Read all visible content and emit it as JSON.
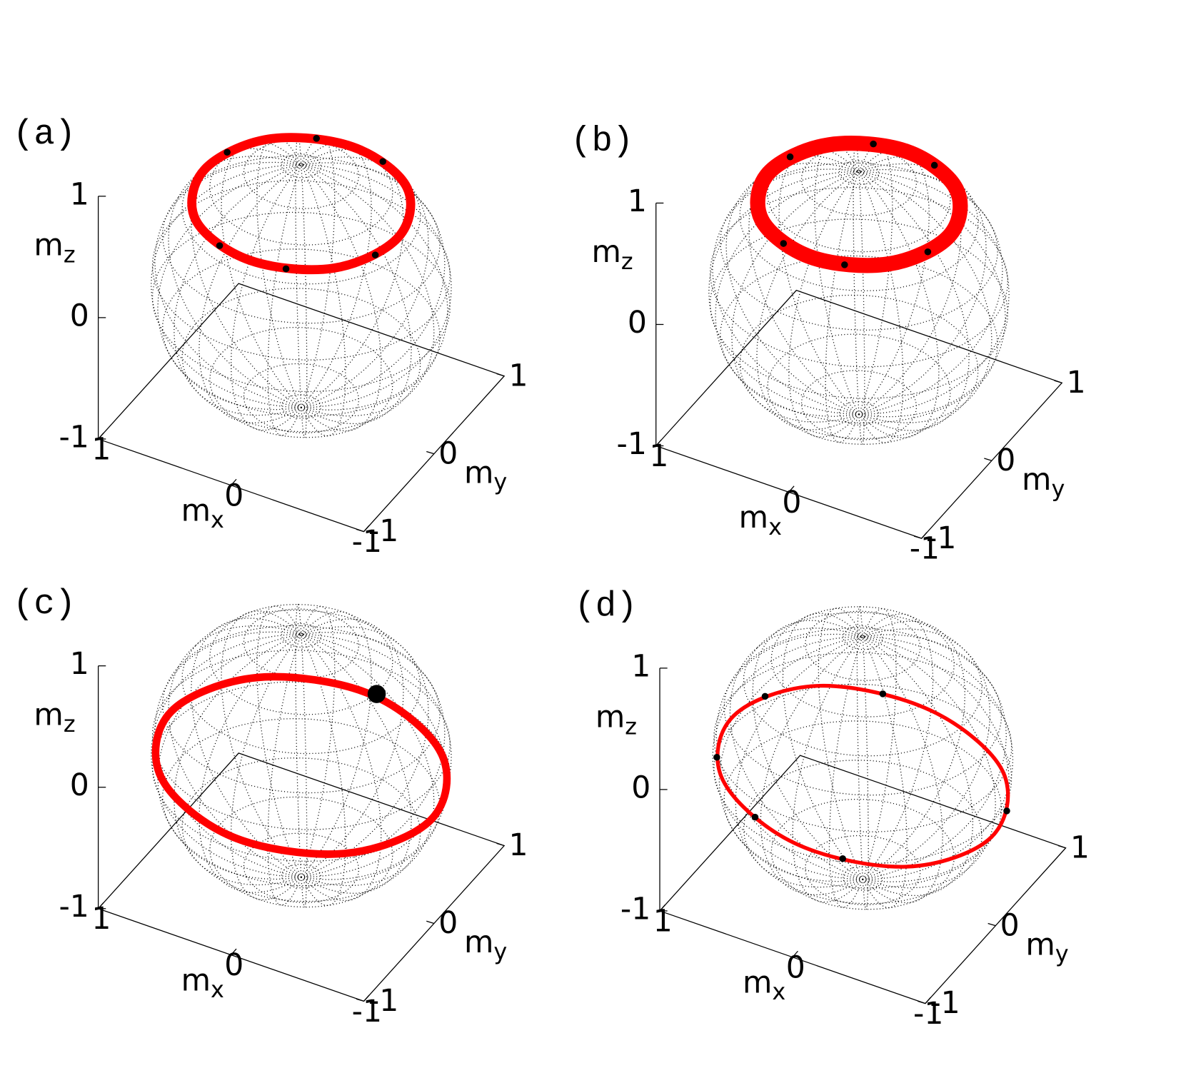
{
  "chart_data": [
    {
      "type": "sphere-trajectory",
      "panel_label": "(a)",
      "xlabel": {
        "text": "m",
        "subscript": "x"
      },
      "ylabel": {
        "text": "m",
        "subscript": "y"
      },
      "zlabel": {
        "text": "m",
        "subscript": "z"
      },
      "xlim": [
        -1,
        1
      ],
      "ylim": [
        -1,
        1
      ],
      "zlim": [
        -1,
        1
      ],
      "xticks": [
        -1,
        0,
        1
      ],
      "yticks": [
        -1,
        0,
        1
      ],
      "zticks": [
        -1,
        0,
        1
      ],
      "series": [
        {
          "mode": "line",
          "color": "#ff0000",
          "x": [
            0.73,
            0.52,
            0,
            -0.52,
            -0.73,
            -0.52,
            0,
            0.52
          ],
          "y": [
            0,
            0.52,
            0.73,
            0.52,
            0,
            -0.52,
            -0.73,
            -0.52
          ],
          "z": [
            0.68,
            0.68,
            0.68,
            0.68,
            0.68,
            0.68,
            0.68,
            0.68
          ]
        },
        {
          "mode": "points",
          "color": "#000000",
          "x": [
            0.69,
            0.25,
            -0.25,
            -0.69,
            -0.25,
            0.25
          ],
          "y": [
            0.25,
            0.69,
            0.69,
            -0.25,
            -0.69,
            -0.69
          ],
          "z": [
            0.68,
            0.68,
            0.68,
            0.68,
            0.68,
            0.68
          ]
        }
      ]
    },
    {
      "type": "sphere-trajectory",
      "panel_label": "(b)",
      "xlabel": {
        "text": "m",
        "subscript": "x"
      },
      "ylabel": {
        "text": "m",
        "subscript": "y"
      },
      "zlabel": {
        "text": "m",
        "subscript": "z"
      },
      "xlim": [
        -1,
        1
      ],
      "ylim": [
        -1,
        1
      ],
      "zlim": [
        -1,
        1
      ],
      "xticks": [
        -1,
        0,
        1
      ],
      "yticks": [
        -1,
        0,
        1
      ],
      "zticks": [
        -1,
        0,
        1
      ],
      "series": [
        {
          "mode": "line",
          "color": "#ff0000",
          "x": [
            0.68,
            0.48,
            0,
            -0.48,
            -0.68,
            -0.48,
            0,
            0.48
          ],
          "y": [
            0,
            0.48,
            0.68,
            0.48,
            0,
            -0.48,
            -0.68,
            -0.48
          ],
          "z": [
            0.73,
            0.73,
            0.73,
            0.73,
            0.73,
            0.73,
            0.73,
            0.73
          ]
        },
        {
          "mode": "points",
          "color": "#000000",
          "x": [
            0.64,
            0.23,
            -0.23,
            -0.64,
            -0.23,
            0.23
          ],
          "y": [
            0.23,
            0.64,
            0.64,
            -0.23,
            -0.64,
            -0.64
          ],
          "z": [
            0.73,
            0.73,
            0.73,
            0.73,
            0.73,
            0.73
          ]
        }
      ]
    },
    {
      "type": "sphere-trajectory",
      "panel_label": "(c)",
      "xlabel": {
        "text": "m",
        "subscript": "x"
      },
      "ylabel": {
        "text": "m",
        "subscript": "y"
      },
      "zlabel": {
        "text": "m",
        "subscript": "z"
      },
      "xlim": [
        -1,
        1
      ],
      "ylim": [
        -1,
        1
      ],
      "zlim": [
        -1,
        1
      ],
      "xticks": [
        -1,
        0,
        1
      ],
      "yticks": [
        -1,
        0,
        1
      ],
      "zticks": [
        -1,
        0,
        1
      ],
      "series": [
        {
          "mode": "line",
          "color": "#ff0000",
          "x": [
            0.98,
            0.69,
            0,
            -0.69,
            -0.98,
            -0.69,
            0,
            0.69
          ],
          "y": [
            0,
            0.69,
            0.98,
            0.69,
            0,
            -0.69,
            -0.98,
            -0.69
          ],
          "z": [
            -0.01,
            -0.06,
            -0.12,
            -0.16,
            -0.15,
            -0.1,
            -0.04,
            0
          ]
        },
        {
          "mode": "points",
          "color": "#000000",
          "x": [
            -0.05
          ],
          "y": [
            0.98
          ],
          "z": [
            -0.1
          ]
        }
      ]
    },
    {
      "type": "sphere-trajectory",
      "panel_label": "(d)",
      "xlabel": {
        "text": "m",
        "subscript": "x"
      },
      "ylabel": {
        "text": "m",
        "subscript": "y"
      },
      "zlabel": {
        "text": "m",
        "subscript": "z"
      },
      "xlim": [
        -1,
        1
      ],
      "ylim": [
        -1,
        1
      ],
      "zlim": [
        -1,
        1
      ],
      "xticks": [
        -1,
        0,
        1
      ],
      "yticks": [
        -1,
        0,
        1
      ],
      "zticks": [
        -1,
        0,
        1
      ],
      "series": [
        {
          "mode": "line",
          "color": "#ff0000",
          "x": [
            0.97,
            0.69,
            0,
            -0.69,
            -0.97,
            -0.69,
            0,
            0.69
          ],
          "y": [
            0,
            0.69,
            0.97,
            0.69,
            0,
            -0.69,
            -0.97,
            -0.69
          ],
          "z": [
            -0.02,
            -0.11,
            -0.23,
            -0.29,
            -0.28,
            -0.19,
            -0.08,
            0
          ]
        },
        {
          "mode": "points",
          "color": "#000000",
          "x": [
            0.91,
            0.33,
            -0.91,
            -0.33,
            0.33,
            0.84
          ],
          "y": [
            0.33,
            0.91,
            0.33,
            -0.91,
            -0.91,
            -0.49
          ],
          "z": [
            -0.05,
            -0.18,
            -0.3,
            -0.12,
            -0.03,
            0
          ]
        }
      ]
    }
  ]
}
